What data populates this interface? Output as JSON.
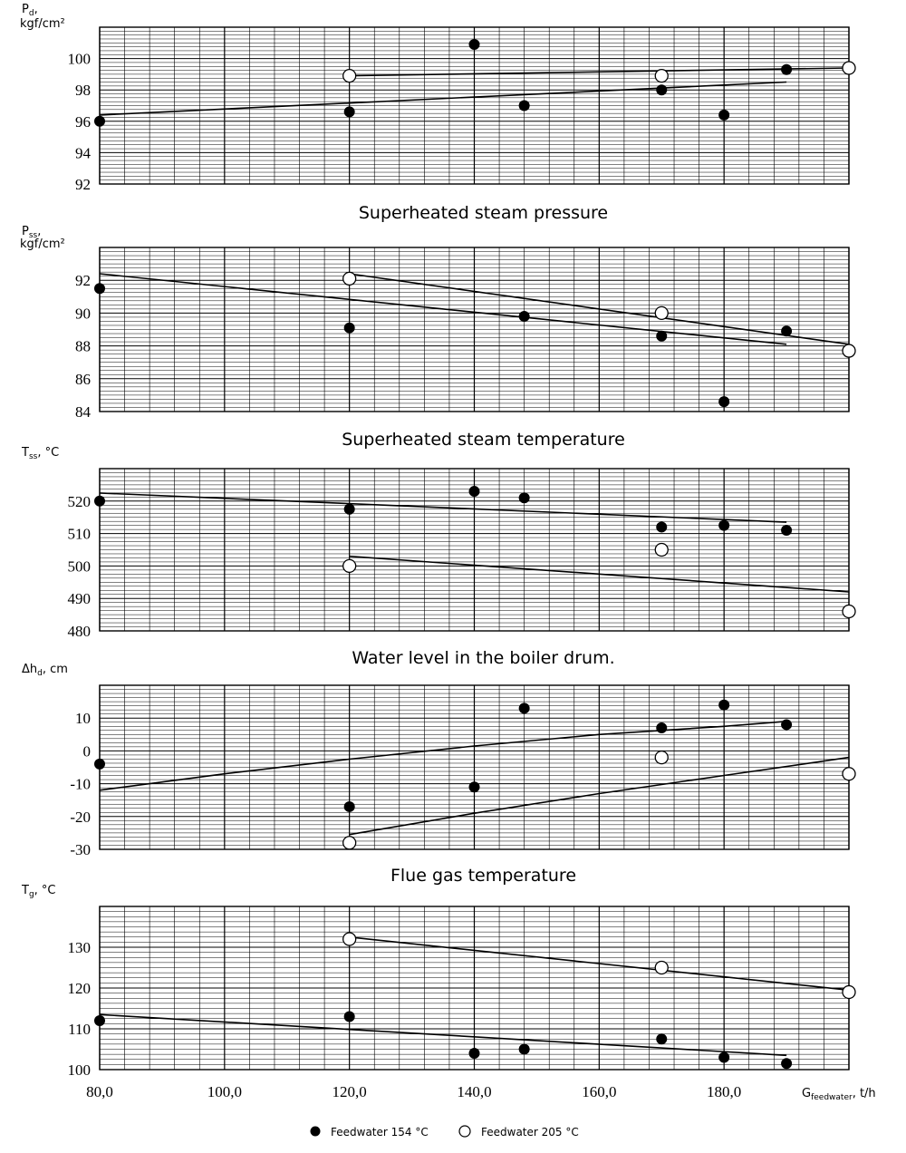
{
  "x_axis": {
    "label": "G",
    "label_sub": "feedwater",
    "label_unit": ", t/h",
    "tick_values": [
      80,
      100,
      120,
      140,
      160,
      180
    ],
    "tick_labels": [
      "80,0",
      "100,0",
      "120,0",
      "140,0",
      "160,0",
      "180,0"
    ]
  },
  "legend": {
    "filled": "Feedwater 154 °C",
    "open": "Feedwater 205 °C"
  },
  "chart_data": [
    {
      "type": "scatter",
      "title": "",
      "ylabel_sym": "P",
      "ylabel_sub": "d",
      "ylabel_rest": ",",
      "ylabel_unit": "kgf/cm²",
      "xlim": [
        80,
        200
      ],
      "ylim": [
        92,
        102
      ],
      "yticks": [
        92,
        94,
        96,
        98,
        100
      ],
      "series": [
        {
          "name": "Feedwater 154 °C",
          "marker": "filled",
          "x": [
            80,
            120,
            140,
            148,
            170,
            180,
            190
          ],
          "y": [
            96.0,
            96.6,
            100.9,
            97.0,
            98.0,
            96.4,
            99.3
          ],
          "trend": [
            [
              80,
              96.4
            ],
            [
              190,
              98.5
            ]
          ]
        },
        {
          "name": "Feedwater 205 °C",
          "marker": "open",
          "x": [
            120,
            170,
            200
          ],
          "y": [
            98.9,
            98.9,
            99.4
          ],
          "trend": [
            [
              120,
              98.9
            ],
            [
              200,
              99.4
            ]
          ]
        }
      ]
    },
    {
      "type": "scatter",
      "title": "Superheated steam pressure",
      "ylabel_sym": "P",
      "ylabel_sub": "ss",
      "ylabel_rest": ",",
      "ylabel_unit": "kgf/cm²",
      "xlim": [
        80,
        200
      ],
      "ylim": [
        84,
        94
      ],
      "yticks": [
        84,
        86,
        88,
        90,
        92
      ],
      "series": [
        {
          "name": "Feedwater 154 °C",
          "marker": "filled",
          "x": [
            80,
            120,
            148,
            170,
            180,
            190
          ],
          "y": [
            91.5,
            89.1,
            89.8,
            88.6,
            84.6,
            88.9
          ],
          "trend": [
            [
              80,
              92.4
            ],
            [
              190,
              88.1
            ]
          ]
        },
        {
          "name": "Feedwater 205 °C",
          "marker": "open",
          "x": [
            120,
            170,
            200
          ],
          "y": [
            92.1,
            90.0,
            87.7
          ],
          "trend": [
            [
              120,
              92.4
            ],
            [
              200,
              88.1
            ]
          ]
        }
      ]
    },
    {
      "type": "scatter",
      "title": "Superheated steam temperature",
      "ylabel_sym": "T",
      "ylabel_sub": "ss",
      "ylabel_rest": ", °C",
      "ylabel_unit": "",
      "xlim": [
        80,
        200
      ],
      "ylim": [
        480,
        530
      ],
      "yticks": [
        480,
        490,
        500,
        510,
        520
      ],
      "series": [
        {
          "name": "Feedwater 154 °C",
          "marker": "filled",
          "x": [
            80,
            120,
            140,
            148,
            170,
            180,
            190
          ],
          "y": [
            520,
            517.5,
            523,
            521,
            512,
            512.5,
            511
          ],
          "trend": [
            [
              80,
              522.5
            ],
            [
              190,
              513.5
            ]
          ]
        },
        {
          "name": "Feedwater 205 °C",
          "marker": "open",
          "x": [
            120,
            170,
            200
          ],
          "y": [
            500,
            505,
            486
          ],
          "trend": [
            [
              120,
              503
            ],
            [
              200,
              492
            ]
          ]
        }
      ]
    },
    {
      "type": "scatter",
      "title": "Water level in the boiler drum.",
      "ylabel_sym": "Δh",
      "ylabel_sub": "d",
      "ylabel_rest": ", cm",
      "ylabel_unit": "",
      "xlim": [
        80,
        200
      ],
      "ylim": [
        -30,
        20
      ],
      "yticks": [
        -30,
        -20,
        -10,
        0,
        10
      ],
      "series": [
        {
          "name": "Feedwater 154 °C",
          "marker": "filled",
          "x": [
            80,
            120,
            140,
            148,
            170,
            180,
            190
          ],
          "y": [
            -4,
            -17,
            -11,
            13,
            7,
            14,
            8
          ],
          "trend_curve": [
            [
              80,
              -12
            ],
            [
              100,
              -7
            ],
            [
              120,
              -2.5
            ],
            [
              140,
              1.5
            ],
            [
              160,
              5
            ],
            [
              180,
              7.5
            ],
            [
              190,
              9
            ]
          ]
        },
        {
          "name": "Feedwater 205 °C",
          "marker": "open",
          "x": [
            120,
            170,
            200
          ],
          "y": [
            -28,
            -2,
            -7
          ],
          "trend_curve": [
            [
              120,
              -25.5
            ],
            [
              140,
              -19
            ],
            [
              160,
              -13
            ],
            [
              180,
              -7.5
            ],
            [
              200,
              -2
            ]
          ]
        }
      ]
    },
    {
      "type": "scatter",
      "title": "Flue gas temperature",
      "ylabel_sym": "T",
      "ylabel_sub": "g",
      "ylabel_rest": ", °C",
      "ylabel_unit": "",
      "xlim": [
        80,
        200
      ],
      "ylim": [
        100,
        140
      ],
      "yticks": [
        100,
        110,
        120,
        130
      ],
      "series": [
        {
          "name": "Feedwater 154 °C",
          "marker": "filled",
          "x": [
            80,
            120,
            140,
            148,
            170,
            180,
            190
          ],
          "y": [
            112,
            113,
            104,
            105,
            107.5,
            103,
            101.5
          ],
          "trend": [
            [
              80,
              113.5
            ],
            [
              190,
              103.5
            ]
          ]
        },
        {
          "name": "Feedwater 205 °C",
          "marker": "open",
          "x": [
            120,
            170,
            200
          ],
          "y": [
            132,
            125,
            119
          ],
          "trend": [
            [
              120,
              132.5
            ],
            [
              200,
              119.5
            ]
          ]
        }
      ]
    }
  ]
}
